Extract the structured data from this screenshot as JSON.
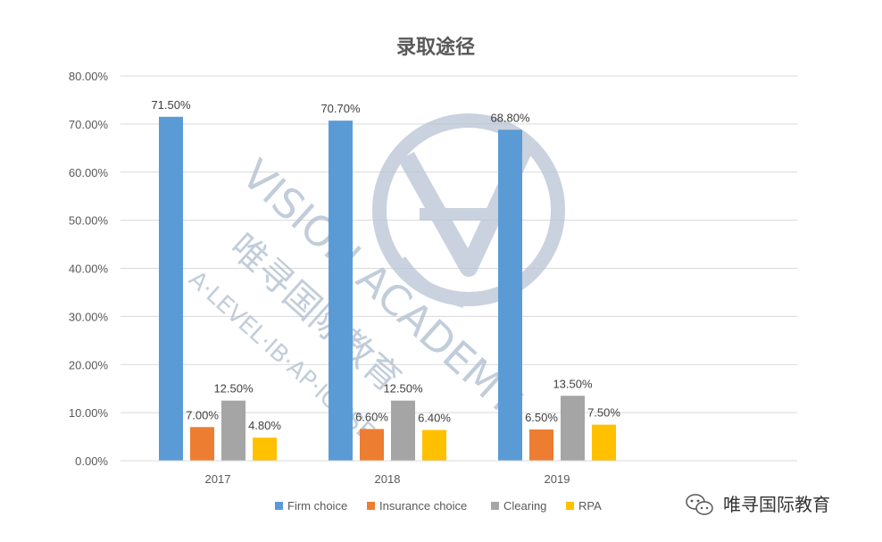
{
  "chart_data": {
    "type": "bar",
    "title": "录取途径",
    "categories": [
      "2017",
      "2018",
      "2019"
    ],
    "series": [
      {
        "name": "Firm choice",
        "color": "#5B9BD5",
        "values": [
          71.5,
          70.7,
          68.8
        ],
        "labels": [
          "71.50%",
          "70.70%",
          "68.80%"
        ]
      },
      {
        "name": "Insurance choice",
        "color": "#ED7D31",
        "values": [
          7.0,
          6.6,
          6.5
        ],
        "labels": [
          "7.00%",
          "6.60%",
          "6.50%"
        ]
      },
      {
        "name": "Clearing",
        "color": "#A5A5A5",
        "values": [
          12.5,
          12.5,
          13.5
        ],
        "labels": [
          "12.50%",
          "12.50%",
          "13.50%"
        ]
      },
      {
        "name": "RPA",
        "color": "#FFC000",
        "values": [
          4.8,
          6.4,
          7.5
        ],
        "labels": [
          "4.80%",
          "6.40%",
          "7.50%"
        ]
      }
    ],
    "ylim": [
      0,
      80
    ],
    "yticks": [
      "0.00%",
      "10.00%",
      "20.00%",
      "30.00%",
      "40.00%",
      "50.00%",
      "60.00%",
      "70.00%",
      "80.00%"
    ],
    "grid": true,
    "legend": "bottom"
  },
  "watermark": {
    "text_en": "VISION ACADEMY",
    "text_cn": "唯寻国际教育",
    "text_sub": "A·LEVEL·IB·AP·IGCSE",
    "logo_icon": "vision-academy-logo-icon"
  },
  "brand": {
    "icon": "wechat-icon",
    "name": "唯寻国际教育"
  }
}
